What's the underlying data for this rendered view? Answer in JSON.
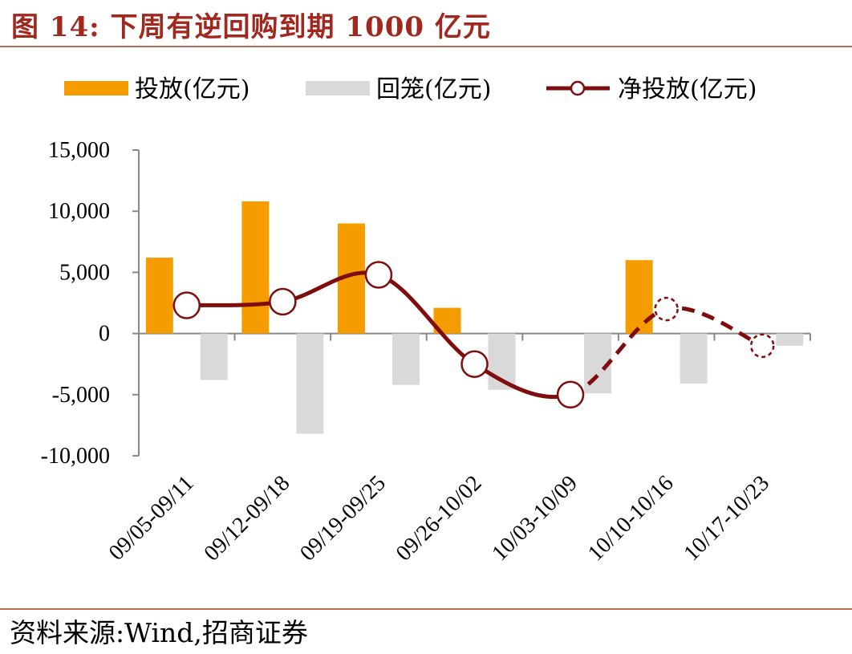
{
  "figure": {
    "title": "图 14:  下周有逆回购到期 1000 亿元",
    "source": "资料来源:Wind,招商证券"
  },
  "colors": {
    "invest": "#f59c00",
    "return": "#d9d9d9",
    "net": "#7f0d0d",
    "title": "#a0281e"
  },
  "chart_data": {
    "type": "bar",
    "categories": [
      "09/05-09/11",
      "09/12-09/18",
      "09/19-09/25",
      "09/26-10/02",
      "10/03-10/09",
      "10/10-10/16",
      "10/17-10/23"
    ],
    "series": [
      {
        "name": "投放(亿元)",
        "type": "bar",
        "values": [
          6200,
          10800,
          9000,
          2100,
          null,
          6000,
          null
        ]
      },
      {
        "name": "回笼(亿元)",
        "type": "bar",
        "values": [
          -3800,
          -8200,
          -4200,
          -4600,
          -4900,
          -4100,
          -1000
        ]
      },
      {
        "name": "净投放(亿元)",
        "type": "line",
        "values": [
          2300,
          2600,
          4800,
          -2500,
          -5000,
          2000,
          -1000
        ],
        "dashed_from_index": 4
      }
    ],
    "ylim": [
      -10000,
      15000
    ],
    "yticks": [
      "15,000",
      "10,000",
      "5,000",
      "0",
      "-5,000",
      "-10,000"
    ],
    "legend_position": "top",
    "grid": false
  }
}
